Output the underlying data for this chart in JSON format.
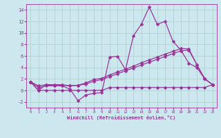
{
  "background_color": "#cce8ee",
  "grid_color": "#aacccc",
  "line_color": "#993399",
  "marker": "D",
  "marker_size": 2.5,
  "xlabel": "Windchill (Refroidissement éolien,°C)",
  "xlim": [
    -0.5,
    23.5
  ],
  "ylim": [
    -3,
    15
  ],
  "yticks": [
    -2,
    0,
    2,
    4,
    6,
    8,
    10,
    12,
    14
  ],
  "xticks": [
    0,
    1,
    2,
    3,
    4,
    5,
    6,
    7,
    8,
    9,
    10,
    11,
    12,
    13,
    14,
    15,
    16,
    17,
    18,
    19,
    20,
    21,
    22,
    23
  ],
  "series": [
    [
      1.5,
      0.0,
      1.0,
      0.8,
      0.8,
      0.2,
      -1.8,
      -0.8,
      -0.5,
      -0.4,
      5.8,
      5.9,
      3.6,
      9.5,
      11.5,
      14.5,
      11.5,
      12.0,
      8.5,
      7.0,
      4.7,
      4.0,
      2.0,
      1.0
    ],
    [
      1.5,
      0.8,
      1.0,
      1.0,
      1.0,
      0.8,
      0.9,
      1.3,
      1.9,
      2.1,
      2.7,
      3.2,
      3.7,
      4.2,
      4.8,
      5.3,
      5.8,
      6.3,
      6.8,
      7.3,
      7.2,
      4.5,
      2.0,
      1.0
    ],
    [
      1.5,
      0.5,
      0.8,
      0.8,
      0.9,
      0.8,
      0.9,
      1.1,
      1.6,
      1.9,
      2.4,
      2.9,
      3.4,
      3.9,
      4.4,
      4.9,
      5.4,
      5.9,
      6.4,
      6.9,
      7.0,
      4.5,
      2.0,
      1.0
    ],
    [
      1.5,
      0.0,
      0.0,
      0.0,
      0.0,
      0.0,
      0.0,
      0.0,
      0.0,
      0.0,
      0.5,
      0.5,
      0.5,
      0.5,
      0.5,
      0.5,
      0.5,
      0.5,
      0.5,
      0.5,
      0.5,
      0.5,
      0.5,
      1.0
    ]
  ]
}
